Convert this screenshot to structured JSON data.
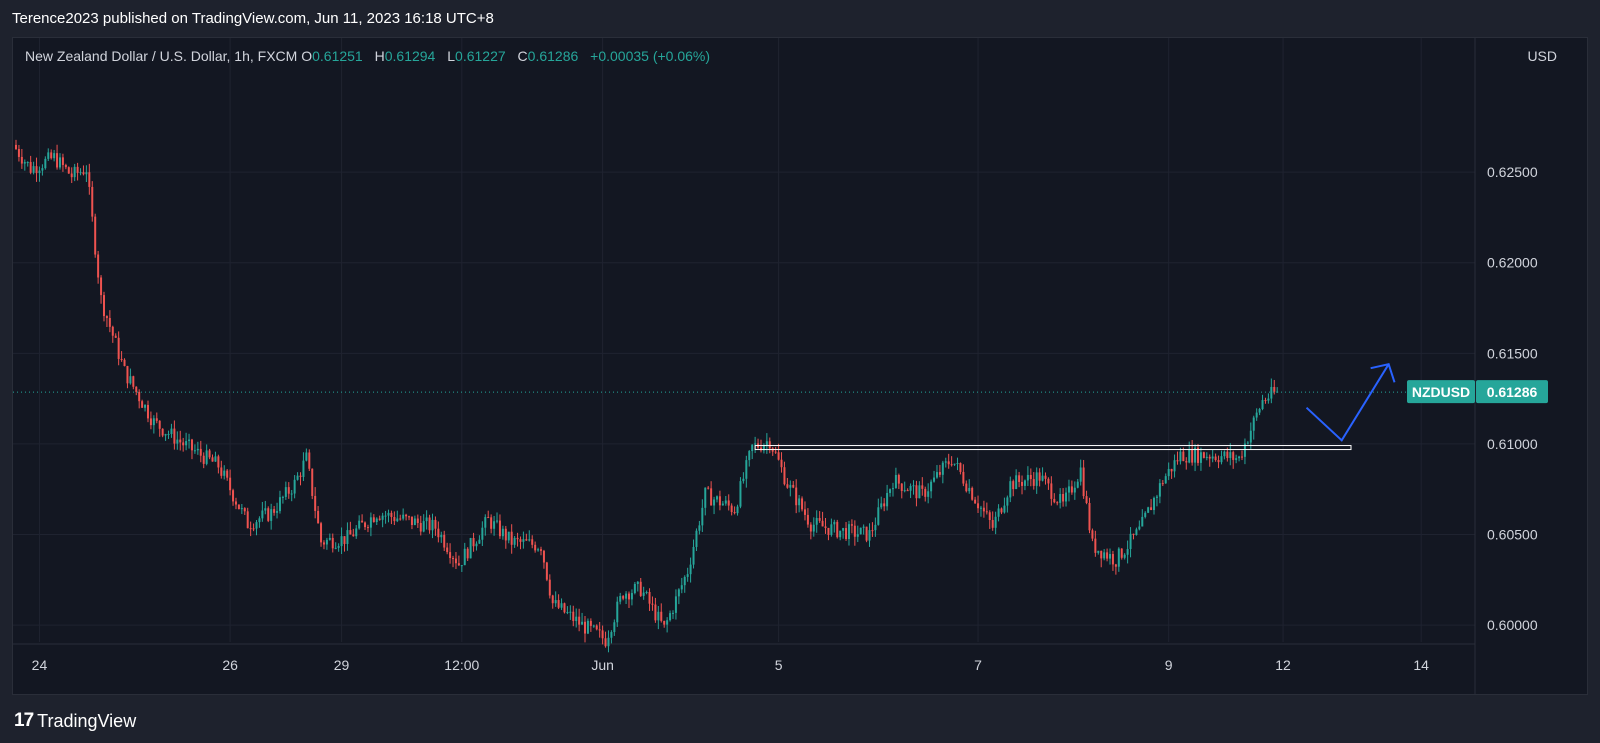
{
  "header": {
    "published_text": "Terence2023 published on TradingView.com, Jun 11, 2023 16:18 UTC+8"
  },
  "legend": {
    "symbol_title": "New Zealand Dollar / U.S. Dollar, 1h, FXCM",
    "o_label": "O",
    "o_value": "0.61251",
    "h_label": "H",
    "h_value": "0.61294",
    "l_label": "L",
    "l_value": "0.61227",
    "c_label": "C",
    "c_value": "0.61286",
    "change": "+0.00035 (+0.06%)"
  },
  "price_axis": {
    "currency": "USD",
    "ticks": [
      "0.62500",
      "0.62000",
      "0.61500",
      "0.61000",
      "0.60500",
      "0.60000"
    ]
  },
  "last_price": {
    "symbol": "NZDUSD",
    "value": "0.61286",
    "color": "#26a69a"
  },
  "time_axis": {
    "ticks": [
      "24",
      "26",
      "29",
      "12:00",
      "Jun",
      "5",
      "7",
      "9",
      "12",
      "14"
    ]
  },
  "colors": {
    "up": "#26a69a",
    "down": "#ef5350",
    "projection": "#2962ff",
    "level_line": "#ffffff"
  },
  "chart_data": {
    "type": "candlestick",
    "symbol": "NZDUSD",
    "interval": "1h",
    "ylim": [
      0.5962,
      0.6324
    ],
    "grid": true,
    "support_level": 0.6098,
    "last_close": 0.61286,
    "path": [
      {
        "i": 0,
        "p": 0.6265
      },
      {
        "i": 6,
        "p": 0.6252
      },
      {
        "i": 14,
        "p": 0.6258
      },
      {
        "i": 20,
        "p": 0.6248
      },
      {
        "i": 25,
        "p": 0.6252
      },
      {
        "i": 30,
        "p": 0.618
      },
      {
        "i": 38,
        "p": 0.614
      },
      {
        "i": 48,
        "p": 0.6112
      },
      {
        "i": 58,
        "p": 0.61
      },
      {
        "i": 70,
        "p": 0.6088
      },
      {
        "i": 80,
        "p": 0.6056
      },
      {
        "i": 88,
        "p": 0.6062
      },
      {
        "i": 96,
        "p": 0.6078
      },
      {
        "i": 100,
        "p": 0.6092
      },
      {
        "i": 105,
        "p": 0.6046
      },
      {
        "i": 114,
        "p": 0.6048
      },
      {
        "i": 124,
        "p": 0.6062
      },
      {
        "i": 134,
        "p": 0.6058
      },
      {
        "i": 144,
        "p": 0.6054
      },
      {
        "i": 152,
        "p": 0.6034
      },
      {
        "i": 162,
        "p": 0.6058
      },
      {
        "i": 170,
        "p": 0.6046
      },
      {
        "i": 180,
        "p": 0.6044
      },
      {
        "i": 184,
        "p": 0.6012
      },
      {
        "i": 194,
        "p": 0.6
      },
      {
        "i": 202,
        "p": 0.5992
      },
      {
        "i": 208,
        "p": 0.6018
      },
      {
        "i": 214,
        "p": 0.602
      },
      {
        "i": 222,
        "p": 0.5998
      },
      {
        "i": 230,
        "p": 0.603
      },
      {
        "i": 236,
        "p": 0.6072
      },
      {
        "i": 246,
        "p": 0.6064
      },
      {
        "i": 252,
        "p": 0.6098
      },
      {
        "i": 258,
        "p": 0.6102
      },
      {
        "i": 264,
        "p": 0.6078
      },
      {
        "i": 272,
        "p": 0.6056
      },
      {
        "i": 282,
        "p": 0.6052
      },
      {
        "i": 292,
        "p": 0.605
      },
      {
        "i": 300,
        "p": 0.608
      },
      {
        "i": 310,
        "p": 0.6072
      },
      {
        "i": 320,
        "p": 0.6092
      },
      {
        "i": 328,
        "p": 0.607
      },
      {
        "i": 334,
        "p": 0.6054
      },
      {
        "i": 340,
        "p": 0.6078
      },
      {
        "i": 350,
        "p": 0.6082
      },
      {
        "i": 358,
        "p": 0.6066
      },
      {
        "i": 364,
        "p": 0.6086
      },
      {
        "i": 368,
        "p": 0.6044
      },
      {
        "i": 376,
        "p": 0.6036
      },
      {
        "i": 384,
        "p": 0.6052
      },
      {
        "i": 392,
        "p": 0.608
      },
      {
        "i": 398,
        "p": 0.6094
      },
      {
        "i": 408,
        "p": 0.6094
      },
      {
        "i": 418,
        "p": 0.6092
      },
      {
        "i": 426,
        "p": 0.6124
      },
      {
        "i": 430,
        "p": 0.6128
      }
    ],
    "projection": [
      {
        "i": 440,
        "p": 0.612
      },
      {
        "i": 452,
        "p": 0.6102
      },
      {
        "i": 468,
        "p": 0.6144
      },
      {
        "i": 470,
        "p": 0.6134
      }
    ]
  }
}
